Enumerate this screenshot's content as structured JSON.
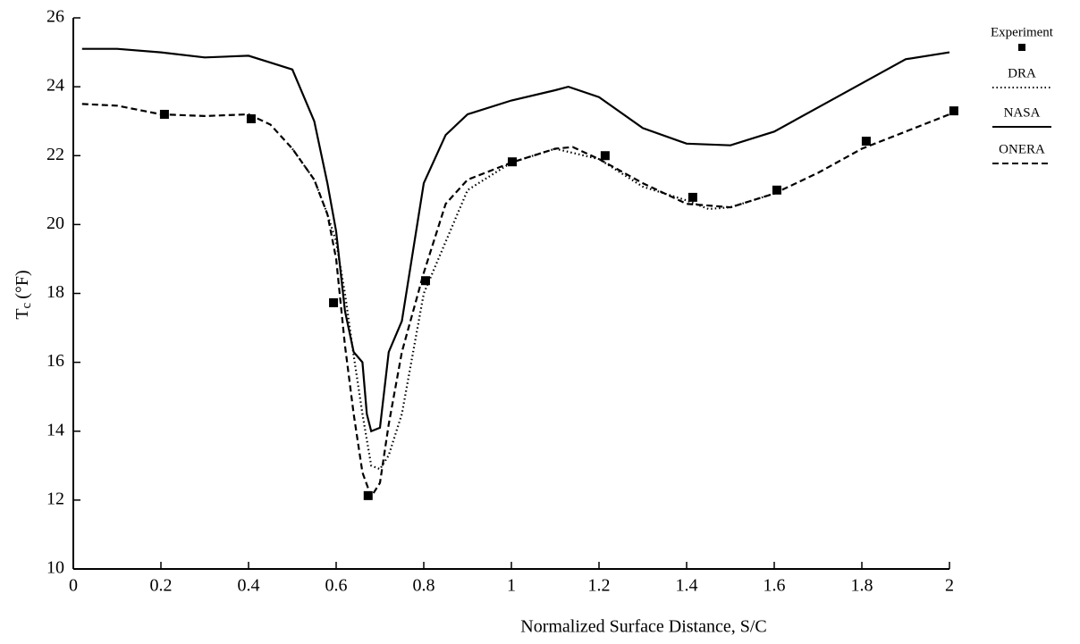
{
  "chart_data": {
    "type": "line",
    "xlabel": "Normalized Surface Distance, S/C",
    "ylabel": "T",
    "ylabel_sub": "c",
    "ylabel_unit": "(°F)",
    "xlim": [
      0,
      2
    ],
    "ylim": [
      10,
      26
    ],
    "xticks": [
      0,
      0.2,
      0.4,
      0.6,
      0.8,
      1,
      1.2,
      1.4,
      1.6,
      1.8,
      2
    ],
    "yticks": [
      10,
      12,
      14,
      16,
      18,
      20,
      22,
      24,
      26
    ],
    "legend": "right",
    "series": [
      {
        "name": "Experiment",
        "color": "#000000",
        "style": "marker",
        "x": [
          0.208,
          0.406,
          0.594,
          0.673,
          0.804,
          1.002,
          1.214,
          1.414,
          1.606,
          1.81,
          2.01
        ],
        "values": [
          23.2,
          23.07,
          17.73,
          12.13,
          18.37,
          21.82,
          22.0,
          20.79,
          21.0,
          22.42,
          23.3
        ]
      },
      {
        "name": "DRA",
        "color": "#000000",
        "style": "dotted",
        "x": [
          0.5,
          0.55,
          0.58,
          0.6,
          0.62,
          0.64,
          0.66,
          0.68,
          0.7,
          0.72,
          0.75,
          0.8,
          0.9,
          1.0,
          1.1,
          1.2,
          1.3,
          1.4,
          1.45,
          1.5,
          1.6
        ],
        "values": [
          22.2,
          21.3,
          20.3,
          19.5,
          18.0,
          16.2,
          14.5,
          13.0,
          12.9,
          13.3,
          14.5,
          18.0,
          21.0,
          21.8,
          22.2,
          21.9,
          21.1,
          20.7,
          20.45,
          20.5,
          20.9
        ]
      },
      {
        "name": "NASA",
        "color": "#000000",
        "style": "solid",
        "x": [
          0.02,
          0.1,
          0.2,
          0.3,
          0.4,
          0.45,
          0.5,
          0.55,
          0.58,
          0.6,
          0.62,
          0.64,
          0.66,
          0.67,
          0.68,
          0.7,
          0.72,
          0.75,
          0.8,
          0.85,
          0.9,
          1.0,
          1.1,
          1.13,
          1.2,
          1.3,
          1.4,
          1.5,
          1.6,
          1.7,
          1.8,
          1.9,
          2.0
        ],
        "values": [
          25.1,
          25.1,
          25.0,
          24.85,
          24.9,
          24.7,
          24.5,
          23.0,
          21.2,
          19.8,
          17.5,
          16.3,
          16.0,
          14.5,
          14.0,
          14.1,
          16.3,
          17.2,
          21.2,
          22.6,
          23.2,
          23.6,
          23.9,
          24.0,
          23.7,
          22.8,
          22.35,
          22.3,
          22.7,
          23.4,
          24.1,
          24.8,
          25.0
        ]
      },
      {
        "name": "ONERA",
        "color": "#000000",
        "style": "dashed",
        "x": [
          0.02,
          0.1,
          0.2,
          0.3,
          0.4,
          0.45,
          0.5,
          0.55,
          0.58,
          0.6,
          0.62,
          0.64,
          0.66,
          0.68,
          0.7,
          0.72,
          0.75,
          0.8,
          0.85,
          0.9,
          1.0,
          1.1,
          1.14,
          1.2,
          1.3,
          1.4,
          1.5,
          1.6,
          1.7,
          1.8,
          1.9,
          2.0
        ],
        "values": [
          23.5,
          23.45,
          23.2,
          23.15,
          23.2,
          22.9,
          22.2,
          21.3,
          20.3,
          19.0,
          16.5,
          14.5,
          12.8,
          12.1,
          12.5,
          14.2,
          16.3,
          18.6,
          20.6,
          21.3,
          21.8,
          22.2,
          22.25,
          21.9,
          21.2,
          20.6,
          20.5,
          20.9,
          21.5,
          22.2,
          22.7,
          23.2
        ]
      }
    ]
  }
}
